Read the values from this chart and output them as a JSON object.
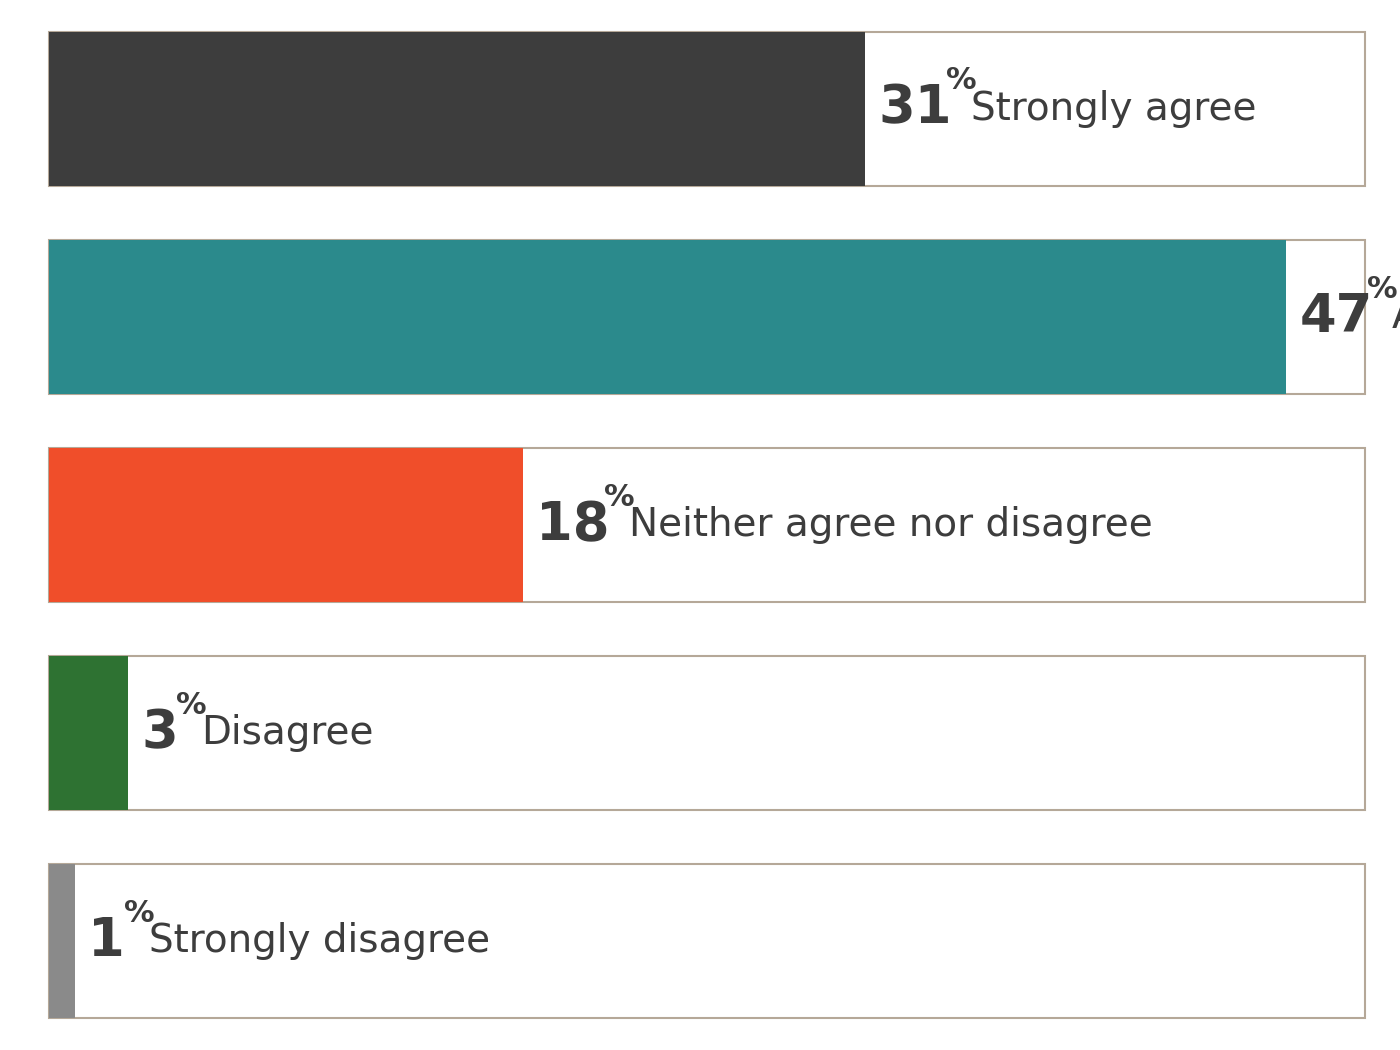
{
  "bars": [
    {
      "value": 31,
      "label": "Strongly agree",
      "bar_color": "#3d3d3d"
    },
    {
      "value": 47,
      "label": "Agree",
      "bar_color": "#2b8a8c"
    },
    {
      "value": 18,
      "label": "Neither agree nor disagree",
      "bar_color": "#f04e2a"
    },
    {
      "value": 3,
      "label": "Disagree",
      "bar_color": "#2e7232"
    },
    {
      "value": 1,
      "label": "Strongly disagree",
      "bar_color": "#8a8a8a"
    }
  ],
  "max_value": 50,
  "background_color": "#ffffff",
  "border_color": "#b5a898",
  "text_color": "#3d3d3d",
  "percent_fontsize": 38,
  "superscript_fontsize": 22,
  "label_fontsize": 28
}
